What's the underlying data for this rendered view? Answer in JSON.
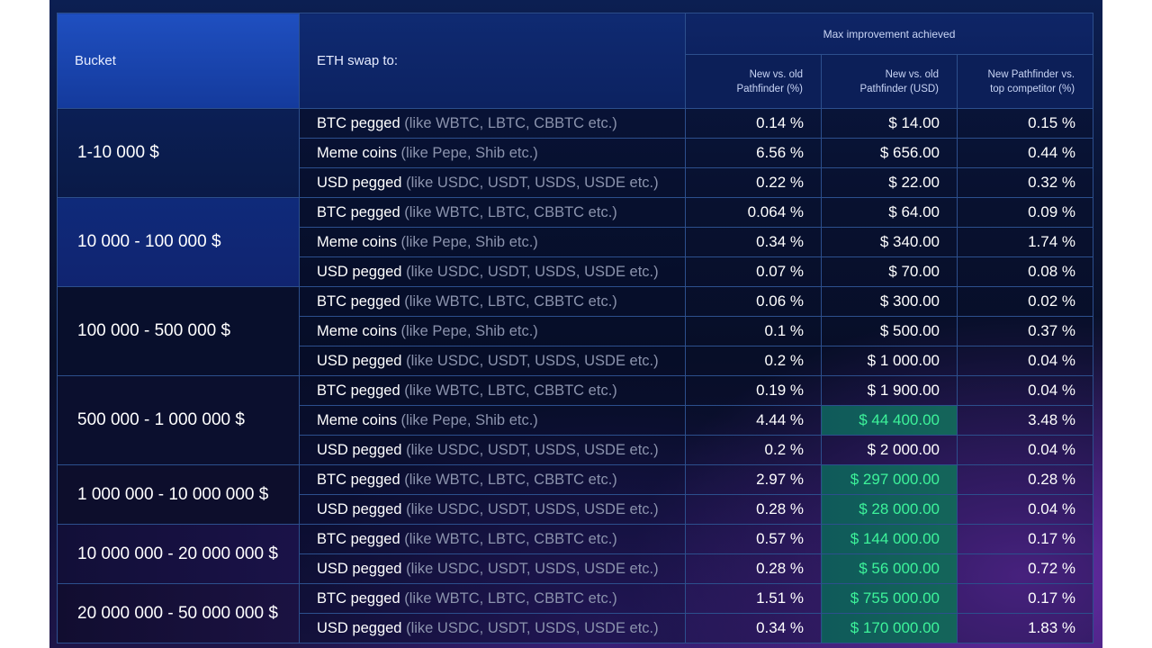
{
  "headers": {
    "bucket": "Bucket",
    "swap": "ETH swap to:",
    "group": "Max improvement achieved",
    "pct": [
      "New vs. old",
      "Pathfinder (%)"
    ],
    "usd": [
      "New vs. old",
      "Pathfinder (USD)"
    ],
    "comp": [
      "New Pathfinder vs.",
      "top competitor (%)"
    ]
  },
  "buckets": [
    {
      "label": "1-10 000 $",
      "rows": [
        {
          "main": "BTC pegged",
          "note": "(like WBTC, LBTC, CBBTC etc.)",
          "pct": "0.14 %",
          "usd": "$ 14.00",
          "comp": "0.15 %",
          "hl": false
        },
        {
          "main": "Meme coins",
          "note": "(like Pepe, Shib etc.)",
          "pct": "6.56 %",
          "usd": "$ 656.00",
          "comp": "0.44 %",
          "hl": false
        },
        {
          "main": "USD pegged",
          "note": "(like USDC, USDT, USDS, USDE etc.)",
          "pct": "0.22 %",
          "usd": "$ 22.00",
          "comp": "0.32 %",
          "hl": false
        }
      ]
    },
    {
      "label": "10 000 - 100 000 $",
      "rows": [
        {
          "main": "BTC pegged",
          "note": "(like WBTC, LBTC, CBBTC etc.)",
          "pct": "0.064 %",
          "usd": "$ 64.00",
          "comp": "0.09 %",
          "hl": false
        },
        {
          "main": "Meme coins",
          "note": "(like Pepe, Shib etc.)",
          "pct": "0.34 %",
          "usd": "$ 340.00",
          "comp": "1.74 %",
          "hl": false
        },
        {
          "main": "USD pegged",
          "note": "(like USDC, USDT, USDS, USDE etc.)",
          "pct": "0.07 %",
          "usd": "$ 70.00",
          "comp": "0.08 %",
          "hl": false
        }
      ]
    },
    {
      "label": "100 000 - 500 000 $",
      "rows": [
        {
          "main": "BTC pegged",
          "note": "(like WBTC, LBTC, CBBTC etc.)",
          "pct": "0.06 %",
          "usd": "$ 300.00",
          "comp": "0.02 %",
          "hl": false
        },
        {
          "main": "Meme coins",
          "note": "(like Pepe, Shib etc.)",
          "pct": "0.1 %",
          "usd": "$ 500.00",
          "comp": "0.37 %",
          "hl": false
        },
        {
          "main": "USD pegged",
          "note": "(like USDC, USDT, USDS, USDE etc.)",
          "pct": "0.2 %",
          "usd": "$ 1 000.00",
          "comp": "0.04 %",
          "hl": false
        }
      ]
    },
    {
      "label": "500 000 - 1 000 000 $",
      "rows": [
        {
          "main": "BTC pegged",
          "note": "(like WBTC, LBTC, CBBTC etc.)",
          "pct": "0.19 %",
          "usd": "$ 1 900.00",
          "comp": "0.04 %",
          "hl": false
        },
        {
          "main": "Meme coins",
          "note": "(like Pepe, Shib etc.)",
          "pct": "4.44 %",
          "usd": "$ 44 400.00",
          "comp": "3.48 %",
          "hl": true
        },
        {
          "main": "USD pegged",
          "note": "(like USDC, USDT, USDS, USDE etc.)",
          "pct": "0.2 %",
          "usd": "$ 2 000.00",
          "comp": "0.04 %",
          "hl": false
        }
      ]
    },
    {
      "label": "1 000 000 - 10 000 000 $",
      "rows": [
        {
          "main": "BTC pegged",
          "note": "(like WBTC, LBTC, CBBTC etc.)",
          "pct": "2.97 %",
          "usd": "$ 297 000.00",
          "comp": "0.28 %",
          "hl": true
        },
        {
          "main": "USD pegged",
          "note": "(like USDC, USDT, USDS, USDE etc.)",
          "pct": "0.28 %",
          "usd": "$ 28 000.00",
          "comp": "0.04 %",
          "hl": true
        }
      ]
    },
    {
      "label": "10 000 000 - 20 000 000 $",
      "rows": [
        {
          "main": "BTC pegged",
          "note": "(like WBTC, LBTC, CBBTC etc.)",
          "pct": "0.57 %",
          "usd": "$ 144 000.00",
          "comp": "0.17 %",
          "hl": true
        },
        {
          "main": "USD pegged",
          "note": "(like USDC, USDT, USDS, USDE etc.)",
          "pct": "0.28 %",
          "usd": "$ 56 000.00",
          "comp": "0.72 %",
          "hl": true
        }
      ]
    },
    {
      "label": "20 000 000 - 50 000 000 $",
      "rows": [
        {
          "main": "BTC pegged",
          "note": "(like WBTC, LBTC, CBBTC etc.)",
          "pct": "1.51 %",
          "usd": "$ 755 000.00",
          "comp": "0.17 %",
          "hl": true
        },
        {
          "main": "USD pegged",
          "note": "(like USDC, USDT, USDS, USDE etc.)",
          "pct": "0.34 %",
          "usd": "$ 170 000.00",
          "comp": "1.83 %",
          "hl": true
        }
      ]
    }
  ]
}
